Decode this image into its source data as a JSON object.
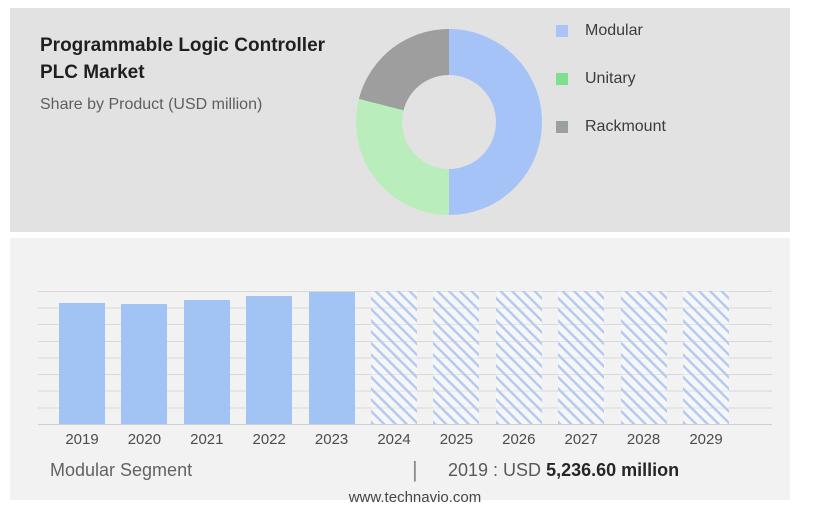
{
  "page": {
    "website": "www.technavio.com"
  },
  "header": {
    "title_line1": "Programmable Logic Controller",
    "title_line2": "PLC Market",
    "subtitle": "Share by Product (USD million)"
  },
  "donut_legend": {
    "items": [
      {
        "label": "Modular",
        "swatch_color": "#a9c4f5"
      },
      {
        "label": "Unitary",
        "swatch_color": "#7ce08f"
      },
      {
        "label": "Rackmount",
        "swatch_color": "#9aa0a2"
      }
    ]
  },
  "footer": {
    "segment_label": "Modular Segment",
    "divider": "|",
    "stat_prefix": "2019 : USD",
    "stat_value": "5,236.60 million"
  },
  "chart_data": [
    {
      "type": "pie",
      "subtype": "donut",
      "title": "Programmable Logic Controller PLC Market — Share by Product (USD million)",
      "labels": [
        "Modular",
        "Unitary",
        "Rackmount"
      ],
      "values_percent": [
        50,
        29,
        21
      ],
      "slice_colors": [
        "#a5c3f6",
        "#b9edbb",
        "#9e9e9e"
      ],
      "start_angle_deg": 0,
      "direction": "clockwise",
      "legend_position": "right",
      "note": "No numeric labels shown; percentages estimated from arc angles"
    },
    {
      "type": "bar",
      "title": "Modular Segment (USD million)",
      "categories": [
        "2019",
        "2020",
        "2021",
        "2022",
        "2023",
        "2024",
        "2025",
        "2026",
        "2027",
        "2028",
        "2029"
      ],
      "series": [
        {
          "name": "Modular segment market size (USD million)",
          "values": [
            5236.6,
            5180,
            5350,
            5550,
            5700,
            null,
            null,
            null,
            null,
            null,
            null
          ]
        }
      ],
      "actual_years": [
        "2019",
        "2020",
        "2021",
        "2022",
        "2023"
      ],
      "forecast_years": [
        "2024",
        "2025",
        "2026",
        "2027",
        "2028",
        "2029"
      ],
      "forecast_rendering": "full-height diagonally hatched columns, values not shown",
      "annotation": "2019 : USD 5,236.60 million",
      "bar_color": "#a2c4f5",
      "hatch_color": "#b5cbf0",
      "grid": true,
      "gridline_count": 9,
      "xlabel": "",
      "ylabel": "",
      "note": "Only the 2019 value is labeled; 2020–2023 values estimated from bar heights"
    }
  ]
}
